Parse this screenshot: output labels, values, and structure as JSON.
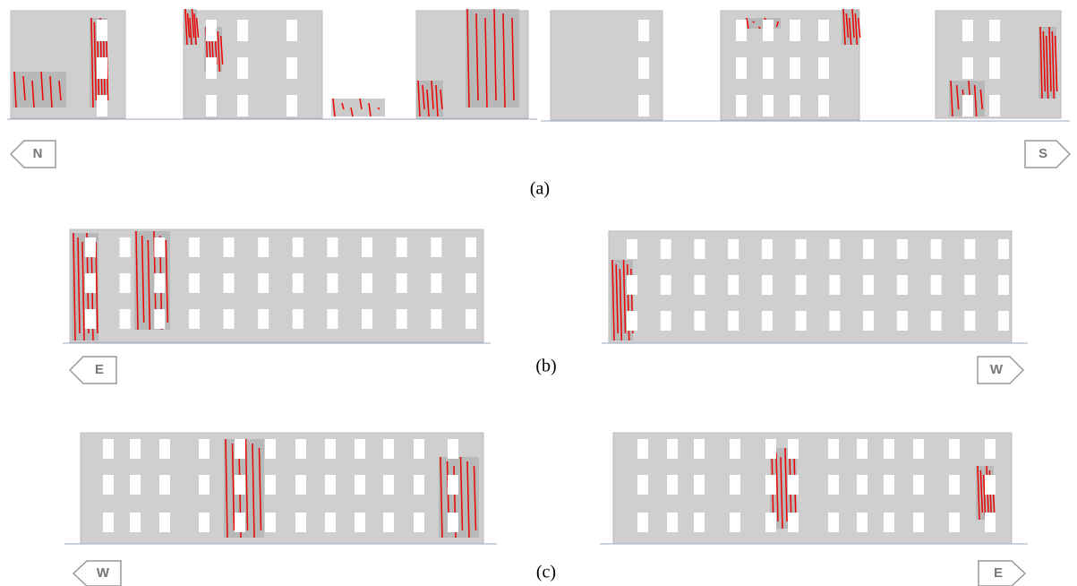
{
  "panels": [
    {
      "caption": "(a)",
      "left_label": "N",
      "right_label": "S"
    },
    {
      "caption": "(b)",
      "left_label": "E",
      "right_label": "W"
    },
    {
      "caption": "(c)",
      "left_label": "W",
      "right_label": "E"
    }
  ]
}
